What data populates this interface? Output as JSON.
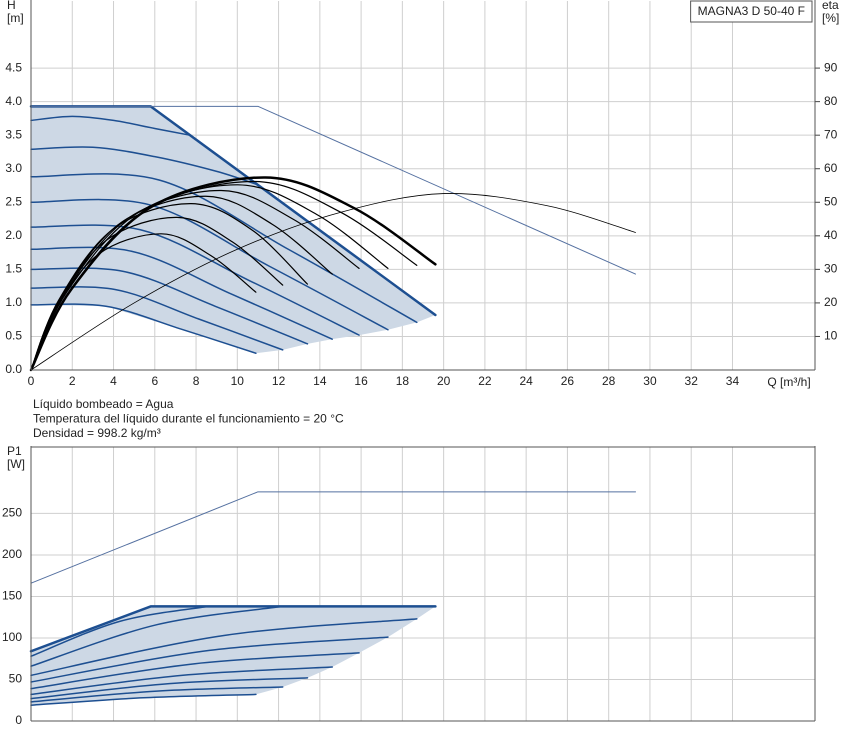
{
  "chart_data": [
    {
      "type": "line",
      "title": "MAGNA3 D 50-40 F",
      "ylabel": [
        "H",
        "[m]"
      ],
      "y2label": [
        "eta",
        "[%]"
      ],
      "xlabel": "Q [m³/h]",
      "xlim": [
        0,
        38
      ],
      "xticks": [
        0,
        2,
        4,
        6,
        8,
        10,
        12,
        14,
        16,
        18,
        20,
        22,
        24,
        26,
        28,
        30,
        32,
        34
      ],
      "ylim": [
        0,
        5.5
      ],
      "yticks": [
        {
          "value": 0,
          "label": "0.0"
        },
        0.5,
        {
          "value": 1,
          "label": "1.0"
        },
        1.5,
        {
          "value": 2,
          "label": "2.0"
        },
        2.5,
        {
          "value": 3,
          "label": "3.0"
        },
        3.5,
        {
          "value": 4,
          "label": "4.0"
        },
        4.5
      ],
      "y2lim": [
        0,
        110
      ],
      "y2ticks": [
        10,
        20,
        30,
        40,
        50,
        60,
        70,
        80,
        90
      ],
      "grid": true,
      "area": {
        "color": "#cdd8e5",
        "x": [
          0,
          5.8,
          19.6,
          18.7,
          17.3,
          15.9,
          14.6,
          13.4,
          12.2,
          10.9,
          7.27,
          3.63,
          0
        ],
        "values": [
          3.93,
          3.93,
          0.82,
          0.71,
          0.6,
          0.52,
          0.46,
          0.39,
          0.3,
          0.25,
          0.61,
          0.95,
          0.97
        ]
      },
      "series": [
        {
          "color": "#1d4f91",
          "line_width": 2.5,
          "smooth": false,
          "x": [
            0,
            5.8,
            19.6
          ],
          "values": [
            3.93,
            3.93,
            0.82
          ]
        },
        {
          "color": "#1d4f91",
          "line_width": 1.5,
          "smooth": true,
          "x": [
            0,
            2,
            4,
            6,
            7.7
          ],
          "values": [
            3.72,
            3.78,
            3.72,
            3.6,
            3.5
          ]
        },
        {
          "color": "#1d4f91",
          "line_width": 1.5,
          "smooth": true,
          "x": [
            0,
            3,
            6,
            9,
            11
          ],
          "values": [
            3.29,
            3.32,
            3.18,
            2.96,
            2.76
          ]
        },
        {
          "color": "#1d4f91",
          "line_width": 1.5,
          "smooth": true,
          "x": [
            0,
            6.23,
            12.47,
            18.7
          ],
          "values": [
            2.88,
            2.83,
            1.8,
            0.71
          ]
        },
        {
          "color": "#1d4f91",
          "line_width": 1.5,
          "smooth": true,
          "x": [
            0,
            5.77,
            11.53,
            17.3
          ],
          "values": [
            2.5,
            2.46,
            1.55,
            0.6
          ]
        },
        {
          "color": "#1d4f91",
          "line_width": 1.5,
          "smooth": true,
          "x": [
            0,
            5.3,
            10.6,
            15.9
          ],
          "values": [
            2.13,
            2.09,
            1.33,
            0.52
          ]
        },
        {
          "color": "#1d4f91",
          "line_width": 1.5,
          "smooth": true,
          "x": [
            0,
            4.87,
            9.73,
            14.6
          ],
          "values": [
            1.8,
            1.77,
            1.13,
            0.46
          ]
        },
        {
          "color": "#1d4f91",
          "line_width": 1.5,
          "smooth": true,
          "x": [
            0,
            4.47,
            8.93,
            13.4
          ],
          "values": [
            1.5,
            1.47,
            0.95,
            0.39
          ]
        },
        {
          "color": "#1d4f91",
          "line_width": 1.5,
          "smooth": true,
          "x": [
            0,
            4.07,
            8.13,
            12.2
          ],
          "values": [
            1.22,
            1.2,
            0.76,
            0.3
          ]
        },
        {
          "color": "#1d4f91",
          "line_width": 1.5,
          "smooth": true,
          "x": [
            0,
            3.63,
            7.27,
            10.9
          ],
          "values": [
            0.97,
            0.95,
            0.61,
            0.25
          ]
        },
        {
          "color": "#5470a0",
          "line_width": 1,
          "smooth": false,
          "x": [
            0,
            11,
            29.3
          ],
          "values": [
            3.93,
            3.93,
            1.43
          ]
        },
        {
          "color": "#000000",
          "line_width": 0.8,
          "smooth": true,
          "axis": "y2",
          "x": [
            0,
            5,
            10,
            15,
            20,
            25,
            29.3
          ],
          "values": [
            0,
            20,
            36,
            47,
            52.6,
            49,
            41
          ]
        },
        {
          "color": "#000000",
          "line_width": 2.5,
          "smooth": true,
          "axis": "y2",
          "x": [
            0,
            1.96,
            5.88,
            11.37,
            15.68,
            19.6
          ],
          "values": [
            0,
            24.1,
            48.8,
            57.4,
            48.2,
            31.5
          ]
        },
        {
          "color": "#000000",
          "line_width": 1.2,
          "smooth": true,
          "axis": "y2",
          "x": [
            0,
            1.87,
            5.61,
            10.85,
            14.96,
            18.7
          ],
          "values": [
            0,
            23.6,
            47.8,
            56.2,
            47.2,
            31.2
          ]
        },
        {
          "color": "#000000",
          "line_width": 1.2,
          "smooth": true,
          "axis": "y2",
          "x": [
            0,
            1.73,
            5.19,
            10.03,
            13.84,
            17.3
          ],
          "values": [
            0,
            23.2,
            46.9,
            55.2,
            46.4,
            30.3
          ]
        },
        {
          "color": "#000000",
          "line_width": 1.2,
          "smooth": true,
          "axis": "y2",
          "x": [
            0,
            1.59,
            4.77,
            9.22,
            12.72,
            15.9
          ],
          "values": [
            0,
            22.5,
            45.5,
            53.5,
            44.9,
            30.3
          ]
        },
        {
          "color": "#000000",
          "line_width": 1.2,
          "smooth": true,
          "axis": "y2",
          "x": [
            0,
            1.46,
            4.38,
            8.47,
            11.68,
            14.6
          ],
          "values": [
            0,
            21.8,
            44,
            51.8,
            43.5,
            28.6
          ]
        },
        {
          "color": "#000000",
          "line_width": 1.2,
          "smooth": true,
          "axis": "y2",
          "x": [
            0,
            1.34,
            4.02,
            7.77,
            10.72,
            13.4
          ],
          "values": [
            0,
            20.8,
            42.2,
            49.6,
            41.7,
            25.6
          ]
        },
        {
          "color": "#000000",
          "line_width": 1.2,
          "smooth": true,
          "axis": "y2",
          "x": [
            0,
            1.22,
            3.66,
            7.08,
            9.76,
            12.2
          ],
          "values": [
            0,
            19.1,
            38.7,
            45.5,
            38.2,
            25.3
          ]
        },
        {
          "color": "#000000",
          "line_width": 1.2,
          "smooth": true,
          "axis": "y2",
          "x": [
            0,
            1.09,
            3.27,
            6.32,
            8.72,
            10.9
          ],
          "values": [
            0,
            17.1,
            34.5,
            40.6,
            34.1,
            23.2
          ]
        }
      ]
    },
    {
      "type": "line",
      "ylabel": [
        "P1",
        "[W]"
      ],
      "xlim": [
        0,
        38
      ],
      "ylim": [
        0,
        330
      ],
      "yticks": [
        0,
        50,
        100,
        150,
        200,
        250
      ],
      "grid": true,
      "area": {
        "color": "#cdd8e5",
        "x": [
          0,
          5.8,
          19.6,
          18.7,
          17.3,
          15.9,
          14.6,
          13.4,
          12.2,
          10.9,
          5.45,
          0
        ],
        "values": [
          84,
          138,
          138,
          123,
          101,
          82,
          65,
          52,
          41,
          32,
          28,
          19
        ]
      },
      "series": [
        {
          "color": "#1d4f91",
          "line_width": 2.5,
          "smooth": false,
          "x": [
            0,
            5.8,
            19.6
          ],
          "values": [
            84,
            138,
            138
          ]
        },
        {
          "color": "#1d4f91",
          "line_width": 1.5,
          "smooth": true,
          "x": [
            0,
            4.3,
            8.6
          ],
          "values": [
            78,
            120,
            138
          ]
        },
        {
          "color": "#1d4f91",
          "line_width": 1.5,
          "smooth": true,
          "x": [
            0,
            6.1,
            12.2
          ],
          "values": [
            66,
            116,
            138
          ]
        },
        {
          "color": "#1d4f91",
          "line_width": 1.5,
          "smooth": true,
          "x": [
            0,
            9.35,
            18.7
          ],
          "values": [
            55,
            103,
            123
          ]
        },
        {
          "color": "#1d4f91",
          "line_width": 1.5,
          "smooth": true,
          "x": [
            0,
            8.65,
            17.3
          ],
          "values": [
            47,
            85,
            101
          ]
        },
        {
          "color": "#1d4f91",
          "line_width": 1.5,
          "smooth": true,
          "x": [
            0,
            7.95,
            15.9
          ],
          "values": [
            39,
            69,
            82
          ]
        },
        {
          "color": "#1d4f91",
          "line_width": 1.5,
          "smooth": true,
          "x": [
            0,
            7.3,
            14.6
          ],
          "values": [
            32,
            55,
            65
          ]
        },
        {
          "color": "#1d4f91",
          "line_width": 1.5,
          "smooth": true,
          "x": [
            0,
            6.7,
            13.4
          ],
          "values": [
            27,
            45,
            52
          ]
        },
        {
          "color": "#1d4f91",
          "line_width": 1.5,
          "smooth": true,
          "x": [
            0,
            6.1,
            12.2
          ],
          "values": [
            23,
            36,
            41
          ]
        },
        {
          "color": "#1d4f91",
          "line_width": 1.5,
          "smooth": true,
          "x": [
            0,
            5.45,
            10.9
          ],
          "values": [
            19,
            28,
            32
          ]
        },
        {
          "color": "#5470a0",
          "line_width": 1,
          "smooth": false,
          "x": [
            0,
            11,
            29.3
          ],
          "values": [
            166,
            276,
            276
          ]
        }
      ]
    }
  ],
  "notes": [
    "Líquido bombeado = Agua",
    "Temperatura del líquido durante el funcionamiento = 20 °C",
    "Densidad = 998.2 kg/m³"
  ]
}
